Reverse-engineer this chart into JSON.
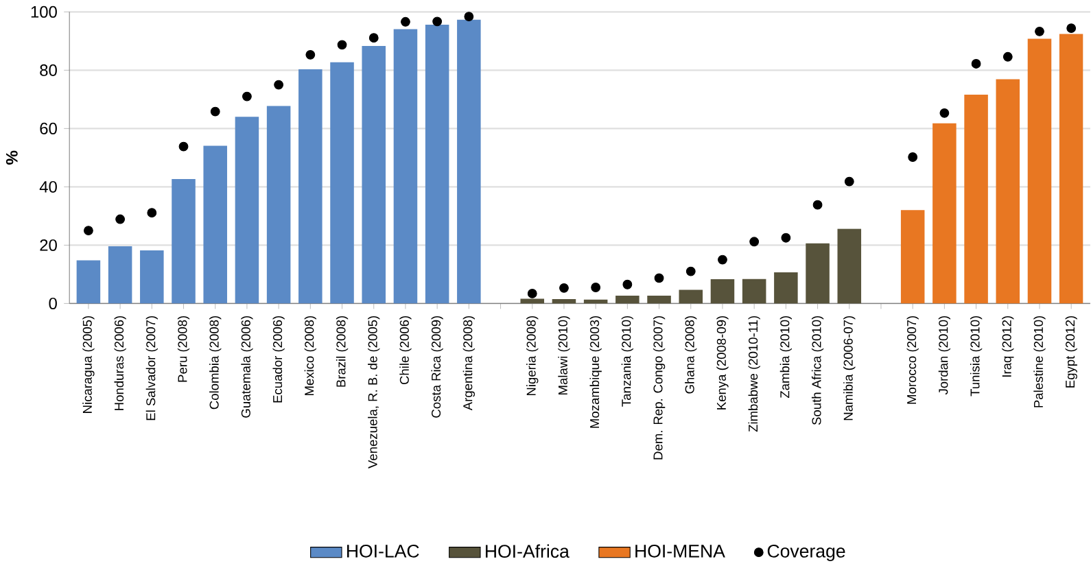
{
  "chart_data": {
    "type": "bar",
    "ylabel": "%",
    "categories": [
      "Nicaragua (2005)",
      "Honduras (2006)",
      "El Salvador (2007)",
      "Peru (2008)",
      "Colombia (2008)",
      "Guatemala (2006)",
      "Ecuador (2006)",
      "Mexico (2008)",
      "Brazil (2008)",
      "Venezuela, R. B. de (2005)",
      "Chile (2006)",
      "Costa Rica (2009)",
      "Argentina (2008)",
      null,
      "Nigeria (2008)",
      "Malawi (2010)",
      "Mozambique (2003)",
      "Tanzania (2010)",
      "Dem. Rep. Congo (2007)",
      "Ghana (2008)",
      "Kenya (2008-09)",
      "Zimbabwe (2010-11)",
      "Zambia (2010)",
      "South Africa (2010)",
      "Namibia (2006-07)",
      null,
      "Morocco (2007)",
      "Jordan (2010)",
      "Tunisia (2010)",
      "Iraq (2012)",
      "Palestine (2010)",
      "Egypt (2012)"
    ],
    "series": [
      {
        "name": "HOI-LAC",
        "color": "#5b8ac6",
        "values": [
          14.8,
          19.6,
          18.2,
          42.7,
          54.1,
          64,
          67.7,
          80.3,
          82.7,
          88.3,
          94.1,
          95.6,
          97.3,
          null,
          null,
          null,
          null,
          null,
          null,
          null,
          null,
          null,
          null,
          null,
          null,
          null,
          null,
          null,
          null,
          null,
          null,
          null
        ]
      },
      {
        "name": "HOI-Africa",
        "color": "#57533b",
        "values": [
          null,
          null,
          null,
          null,
          null,
          null,
          null,
          null,
          null,
          null,
          null,
          null,
          null,
          null,
          1.6,
          1.5,
          1.3,
          2.7,
          2.7,
          4.7,
          8.3,
          8.4,
          10.7,
          20.6,
          25.6,
          null,
          null,
          null,
          null,
          null,
          null,
          null
        ]
      },
      {
        "name": "HOI-MENA",
        "color": "#e87722",
        "values": [
          null,
          null,
          null,
          null,
          null,
          null,
          null,
          null,
          null,
          null,
          null,
          null,
          null,
          null,
          null,
          null,
          null,
          null,
          null,
          null,
          null,
          null,
          null,
          null,
          null,
          null,
          32,
          61.8,
          71.6,
          76.9,
          90.8,
          92.4
        ]
      },
      {
        "name": "Coverage",
        "type": "scatter",
        "color": "#000000",
        "values": [
          25,
          28.9,
          31.1,
          53.8,
          65.8,
          71,
          75,
          85.3,
          88.7,
          91.1,
          96.6,
          96.7,
          98.4,
          null,
          3.4,
          5.3,
          5.5,
          6.5,
          8.7,
          11,
          15,
          21.2,
          22.5,
          33.8,
          41.8,
          null,
          50.2,
          65.3,
          82.2,
          84.6,
          93.3,
          94.4
        ]
      }
    ],
    "ylim": [
      0,
      100
    ],
    "yticks": [
      0,
      20,
      40,
      60,
      80,
      100
    ],
    "grid": "y",
    "legend": "bottom"
  }
}
